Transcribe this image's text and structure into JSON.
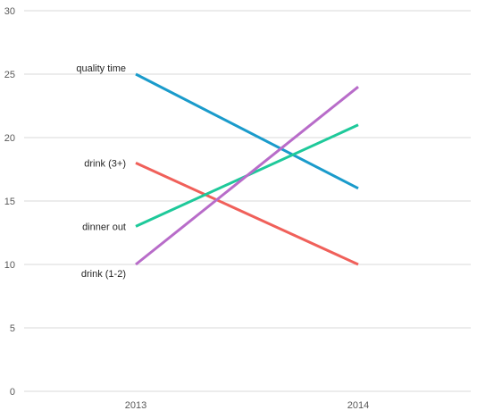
{
  "chart_data": {
    "type": "line",
    "title": "",
    "xlabel": "",
    "ylabel": "",
    "categories": [
      "2013",
      "2014"
    ],
    "ylim": [
      0,
      30
    ],
    "yticks": [
      0,
      5,
      10,
      15,
      20,
      25,
      30
    ],
    "grid": true,
    "legend": "labels at left of series",
    "series": [
      {
        "name": "quality time",
        "values": [
          25,
          16
        ],
        "color": "#1a9bcb"
      },
      {
        "name": "drink (3+)",
        "values": [
          18,
          10
        ],
        "color": "#f0605a"
      },
      {
        "name": "dinner out",
        "values": [
          13,
          21
        ],
        "color": "#1ec99a"
      },
      {
        "name": "drink (1-2)",
        "values": [
          10,
          24
        ],
        "color": "#b86cc9"
      }
    ]
  }
}
